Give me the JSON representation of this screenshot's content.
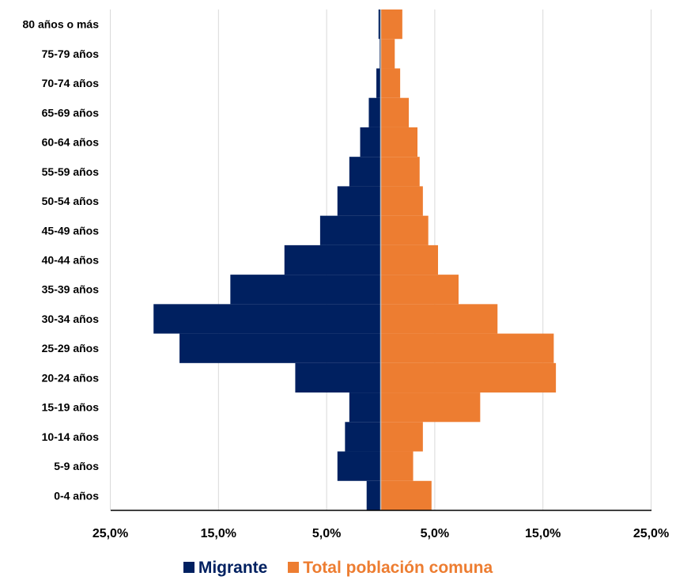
{
  "chart_data": {
    "type": "bar",
    "orientation": "horizontal",
    "layout": "population-pyramid",
    "categories": [
      "0-4 años",
      "5-9 años",
      "10-14 años",
      "15-19 años",
      "20-24 años",
      "25-29 años",
      "30-34 años",
      "35-39 años",
      "40-44 años",
      "45-49 años",
      "50-54 años",
      "55-59 años",
      "60-64 años",
      "65-69 años",
      "70-74 años",
      "75-79 años",
      "80 años o más"
    ],
    "series": [
      {
        "name": "Migrante",
        "side": "left",
        "color": "#002060",
        "values": [
          1.3,
          4.0,
          3.3,
          2.9,
          7.9,
          18.6,
          21.0,
          13.9,
          8.9,
          5.6,
          4.0,
          2.9,
          1.9,
          1.1,
          0.4,
          0.1,
          0.2
        ]
      },
      {
        "name": "Total población comuna",
        "side": "right",
        "color": "#ED7D31",
        "values": [
          4.7,
          3.0,
          3.9,
          9.2,
          16.2,
          16.0,
          10.8,
          7.2,
          5.3,
          4.4,
          3.9,
          3.6,
          3.4,
          2.6,
          1.8,
          1.3,
          2.0
        ]
      }
    ],
    "x_ticks": [
      "25,0%",
      "15,0%",
      "5,0%",
      "5,0%",
      "15,0%",
      "25,0%"
    ],
    "x_tick_values": [
      -25,
      -15,
      -5,
      5,
      15,
      25
    ],
    "xlim": [
      -25,
      25
    ],
    "grid": true,
    "legend_position": "bottom"
  }
}
